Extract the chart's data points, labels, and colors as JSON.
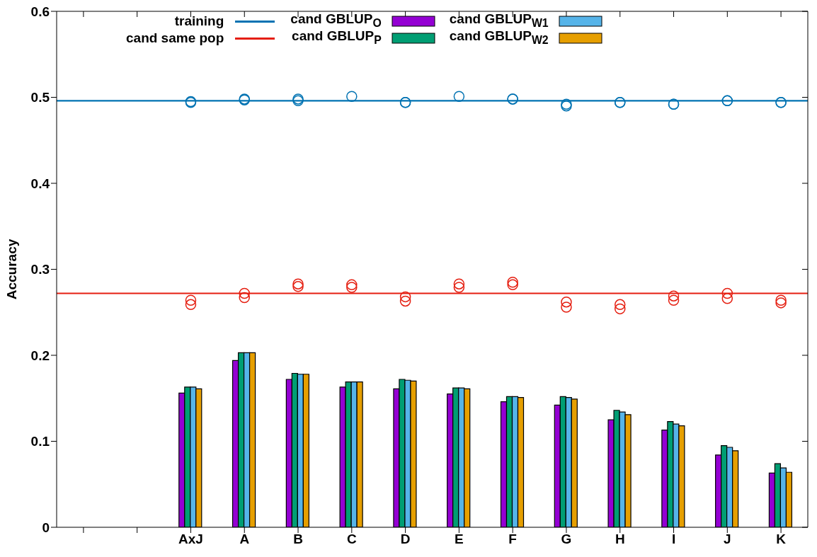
{
  "chart_data": {
    "type": "bar",
    "ylabel": "Accuracy",
    "categories": [
      null,
      null,
      "AxJ",
      "A",
      "B",
      "C",
      "D",
      "E",
      "F",
      "G",
      "H",
      "I",
      "J",
      "K"
    ],
    "series": [
      {
        "name": "cand GBLUP$_{O}$",
        "color": "#9400d3",
        "values": [
          null,
          null,
          0.156,
          0.194,
          0.172,
          0.163,
          0.161,
          0.155,
          0.146,
          0.142,
          0.125,
          0.113,
          0.084,
          0.063
        ]
      },
      {
        "name": "cand GBLUP$_{P}$",
        "color": "#009e73",
        "values": [
          null,
          null,
          0.163,
          0.203,
          0.179,
          0.169,
          0.172,
          0.162,
          0.152,
          0.152,
          0.136,
          0.123,
          0.095,
          0.074
        ]
      },
      {
        "name": "cand GBLUP$_{W1}$",
        "color": "#56b4e9",
        "values": [
          null,
          null,
          0.163,
          0.203,
          0.178,
          0.169,
          0.171,
          0.162,
          0.152,
          0.151,
          0.134,
          0.12,
          0.093,
          0.069
        ]
      },
      {
        "name": "cand GBLUP$_{W2}$",
        "color": "#e69f00",
        "values": [
          null,
          null,
          0.161,
          0.203,
          0.178,
          0.169,
          0.17,
          0.161,
          0.151,
          0.149,
          0.131,
          0.118,
          0.089,
          0.064
        ]
      },
      {
        "type": "scatter",
        "color": "#0072b2",
        "values": [
          null,
          null,
          0.495,
          0.497,
          0.498,
          0.501,
          0.494,
          0.501,
          0.498,
          0.492,
          0.494,
          0.492,
          0.496,
          0.494
        ]
      },
      {
        "type": "scatter",
        "color": "#0072b2",
        "values": [
          null,
          null,
          0.494,
          0.498,
          0.496,
          null,
          0.494,
          null,
          0.498,
          0.49,
          0.494,
          0.492,
          0.496,
          0.494
        ]
      },
      {
        "type": "scatter",
        "color": "#e51e10",
        "values": [
          null,
          null,
          0.264,
          0.272,
          0.283,
          0.282,
          0.268,
          0.283,
          0.285,
          0.262,
          0.259,
          0.269,
          0.272,
          0.264
        ]
      },
      {
        "type": "scatter",
        "color": "#e51e10",
        "values": [
          null,
          null,
          0.259,
          0.267,
          0.28,
          0.279,
          0.263,
          0.279,
          0.282,
          0.256,
          0.254,
          0.264,
          0.266,
          0.261
        ]
      }
    ],
    "ref_lines": [
      {
        "axis": "y",
        "value": 0.496,
        "label": "training",
        "color": "#0072b2"
      },
      {
        "axis": "y",
        "value": 0.272,
        "label": "cand same pop",
        "color": "#e51e10"
      }
    ],
    "ylim": [
      0,
      0.6
    ],
    "yticks": [
      0,
      0.1,
      0.2,
      0.3,
      0.4,
      0.5,
      0.6
    ],
    "legend": "top",
    "marker": "circle"
  }
}
